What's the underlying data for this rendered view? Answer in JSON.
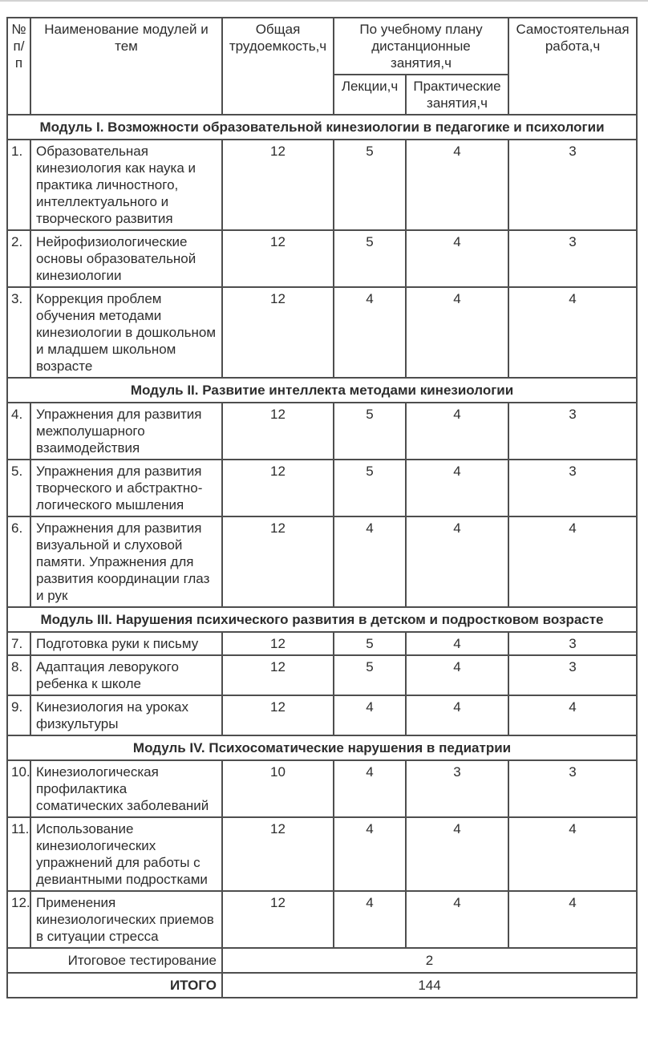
{
  "colors": {
    "border": "#4e4e4e",
    "text": "#2d2d2d",
    "background": "#ffffff",
    "top_divider": "#d2d2d2"
  },
  "table": {
    "headers": {
      "num": "№ п/п",
      "name": "Наименование модулей и тем",
      "total": "Общая трудоемкость,ч",
      "plan_group": "По учебному плану дистанционные занятия,ч",
      "lectures": "Лекции,ч",
      "practical": "Практические занятия,ч",
      "self": "Самостоятельная работа,ч"
    },
    "sections": [
      {
        "title": "Модуль I. Возможности образовательной кинезиологии в педагогике и психологии",
        "rows": [
          {
            "num": "1.",
            "name": "Образовательная кинезиология как наука и практика личностного, интеллектуального и творческого развития",
            "total": "12",
            "lectures": "5",
            "practical": "4",
            "self": "3"
          },
          {
            "num": "2.",
            "name": "Нейрофизиологические основы образовательной кинезиологии",
            "total": "12",
            "lectures": "5",
            "practical": "4",
            "self": "3"
          },
          {
            "num": "3.",
            "name": "Коррекция проблем обучения методами кинезиологии в дошкольном и младшем школьном возрасте",
            "total": "12",
            "lectures": "4",
            "practical": "4",
            "self": "4"
          }
        ]
      },
      {
        "title": "Модуль II.  Развитие интеллекта методами кинезиологии",
        "rows": [
          {
            "num": "4.",
            "name": "Упражнения для развития межполушарного взаимодействия",
            "total": "12",
            "lectures": "5",
            "practical": "4",
            "self": "3"
          },
          {
            "num": "5.",
            "name": "Упражнения для развития творческого и абстрактно-логического мышления",
            "total": "12",
            "lectures": "5",
            "practical": "4",
            "self": "3"
          },
          {
            "num": "6.",
            "name": "Упражнения для развития визуальной и слуховой памяти. Упражнения для развития координации глаз и рук",
            "total": "12",
            "lectures": "4",
            "practical": "4",
            "self": "4"
          }
        ]
      },
      {
        "title": "Модуль III. Нарушения психического развития в детском и подростковом возрасте",
        "rows": [
          {
            "num": "7.",
            "name": "Подготовка руки к письму",
            "total": "12",
            "lectures": "5",
            "practical": "4",
            "self": "3"
          },
          {
            "num": "8.",
            "name": "Адаптация леворукого ребенка к школе",
            "total": "12",
            "lectures": "5",
            "practical": "4",
            "self": "3"
          },
          {
            "num": "9.",
            "name": "Кинезиология на уроках физкультуры",
            "total": "12",
            "lectures": "4",
            "practical": "4",
            "self": "4"
          }
        ]
      },
      {
        "title": "Модуль IV. Психосоматические нарушения в педиатрии",
        "rows": [
          {
            "num": "10.",
            "name": "Кинезиологическая профилактика соматических заболеваний",
            "total": "10",
            "lectures": "4",
            "practical": "3",
            "self": "3"
          },
          {
            "num": "11.",
            "name": "Использование кинезиологических упражнений для работы с девиантными подростками",
            "total": "12",
            "lectures": "4",
            "practical": "4",
            "self": "4"
          },
          {
            "num": "12.",
            "name": "Применения кинезиологических приемов в ситуации стресса",
            "total": "12",
            "lectures": "4",
            "practical": "4",
            "self": "4"
          }
        ]
      }
    ],
    "footer": [
      {
        "label": "Итоговое тестирование",
        "value": "2",
        "bold": false
      },
      {
        "label": "ИТОГО",
        "value": "144",
        "bold": true
      }
    ]
  }
}
